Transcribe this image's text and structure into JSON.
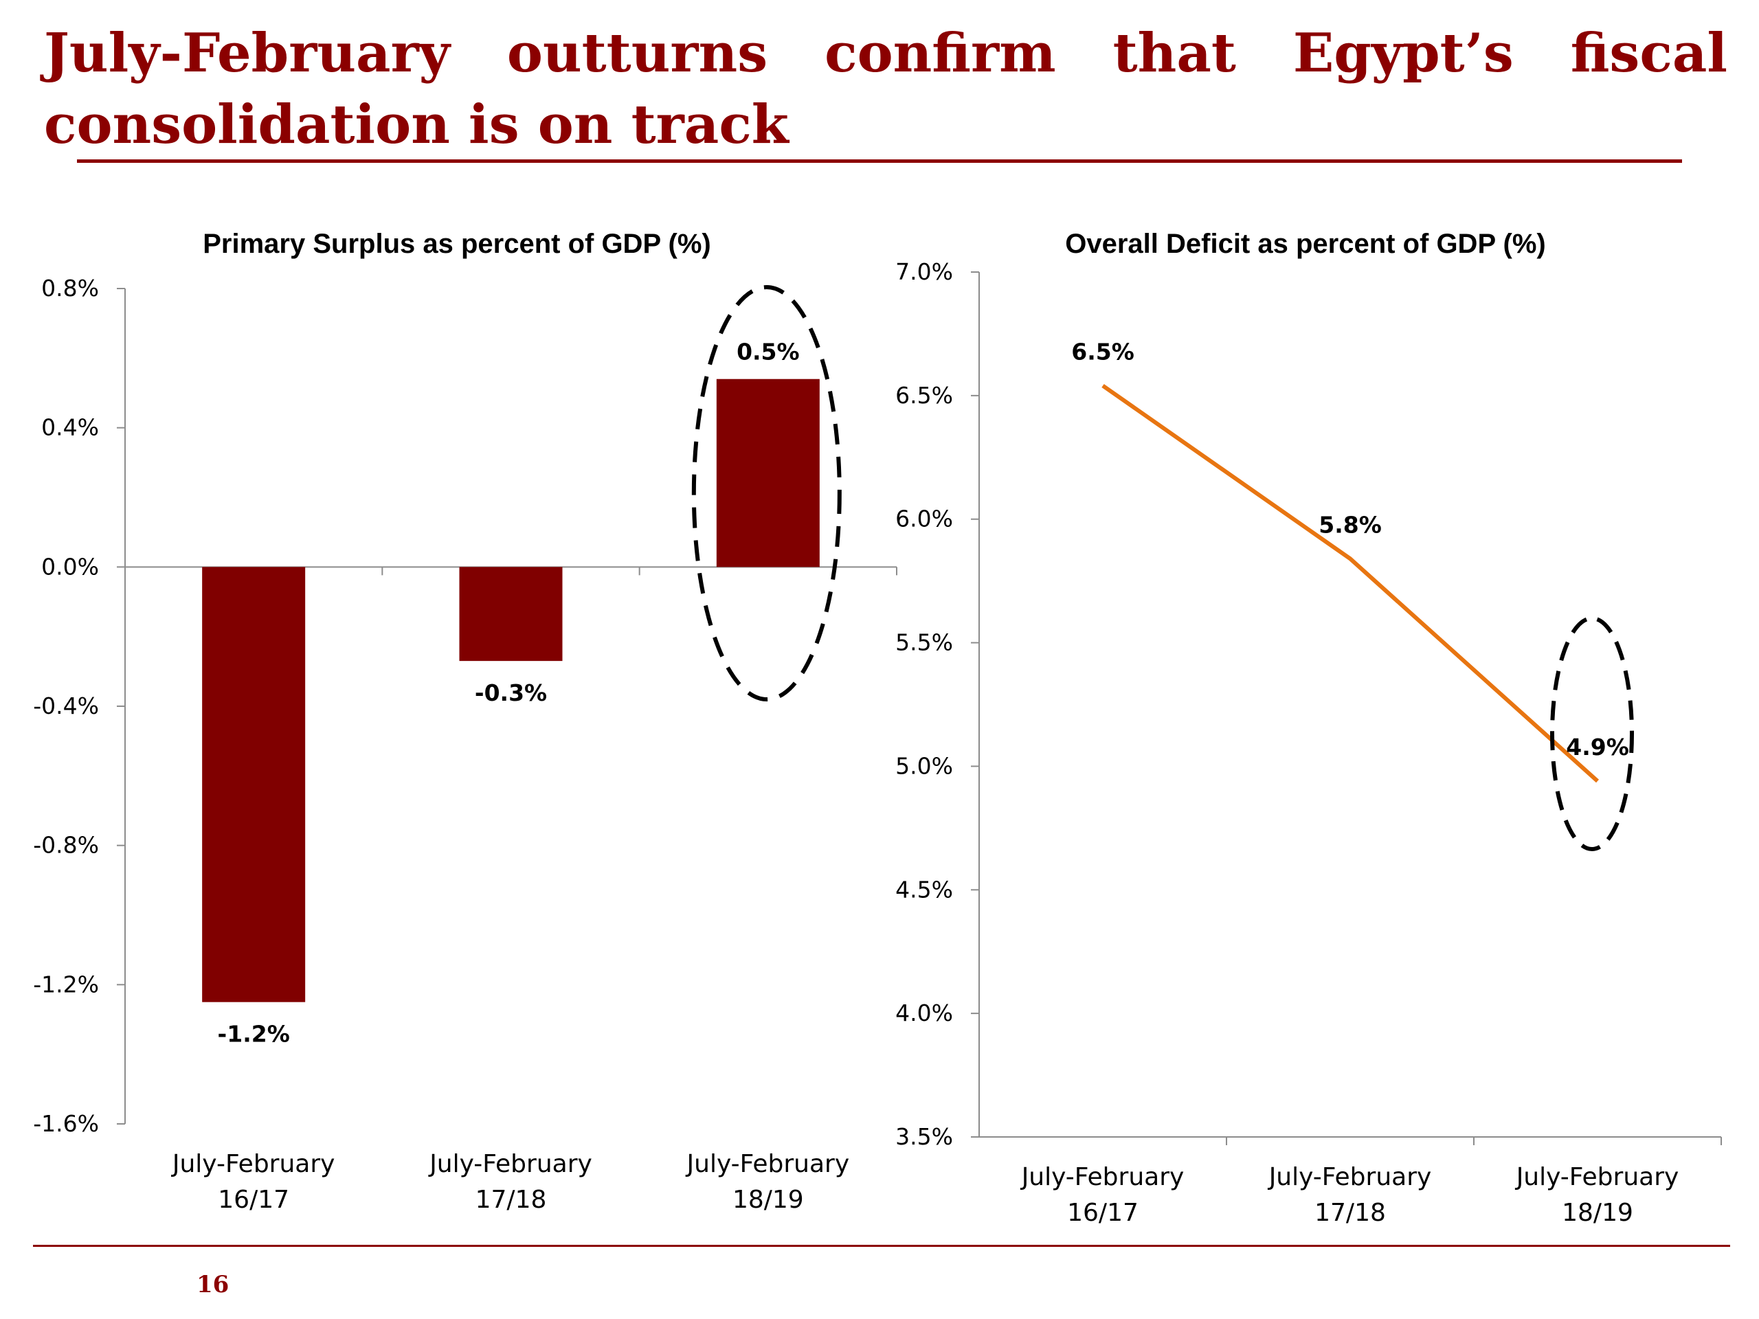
{
  "slide": {
    "title": "July-February outturns confirm that Egypt’s fiscal consolidation is on track",
    "page_number": "16",
    "colors": {
      "title": "#8b0000",
      "bar": "#800000",
      "line": "#e87511",
      "rule": "#8b0000"
    }
  },
  "chart_data": [
    {
      "type": "bar",
      "title": "Primary Surplus as percent of GDP (%)",
      "xlabel": "",
      "ylabel": "",
      "categories": [
        [
          "July-February",
          "16/17"
        ],
        [
          "July-February",
          "17/18"
        ],
        [
          "July-February",
          "18/19"
        ]
      ],
      "values": [
        -1.25,
        -0.27,
        0.54
      ],
      "data_labels": [
        "-1.2%",
        "-0.3%",
        "0.5%"
      ],
      "ylim": [
        -1.6,
        0.8
      ],
      "yticks": [
        0.8,
        0.4,
        0.0,
        -0.4,
        -0.8,
        -1.2,
        -1.6
      ],
      "ytick_labels": [
        "0.8%",
        "0.4%",
        "0.0%",
        "-0.4%",
        "-0.8%",
        "-1.2%",
        "-1.6%"
      ],
      "grid": false,
      "legend": "none",
      "highlight": "dashed ellipse around July-February 18/19"
    },
    {
      "type": "line",
      "title": "Overall Deficit as percent of GDP (%)",
      "xlabel": "",
      "ylabel": "",
      "categories": [
        [
          "July-February",
          "16/17"
        ],
        [
          "July-February",
          "17/18"
        ],
        [
          "July-February",
          "18/19"
        ]
      ],
      "values": [
        6.54,
        5.84,
        4.94
      ],
      "data_labels": [
        "6.5%",
        "5.8%",
        "4.9%"
      ],
      "ylim": [
        3.5,
        7.0
      ],
      "yticks": [
        7.0,
        6.5,
        6.0,
        5.5,
        5.0,
        4.5,
        4.0,
        3.5
      ],
      "ytick_labels": [
        "7.0%",
        "6.5%",
        "6.0%",
        "5.5%",
        "5.0%",
        "4.5%",
        "4.0%",
        "3.5%"
      ],
      "grid": false,
      "legend": "none",
      "highlight": "dashed ellipse around July-February 18/19"
    }
  ]
}
